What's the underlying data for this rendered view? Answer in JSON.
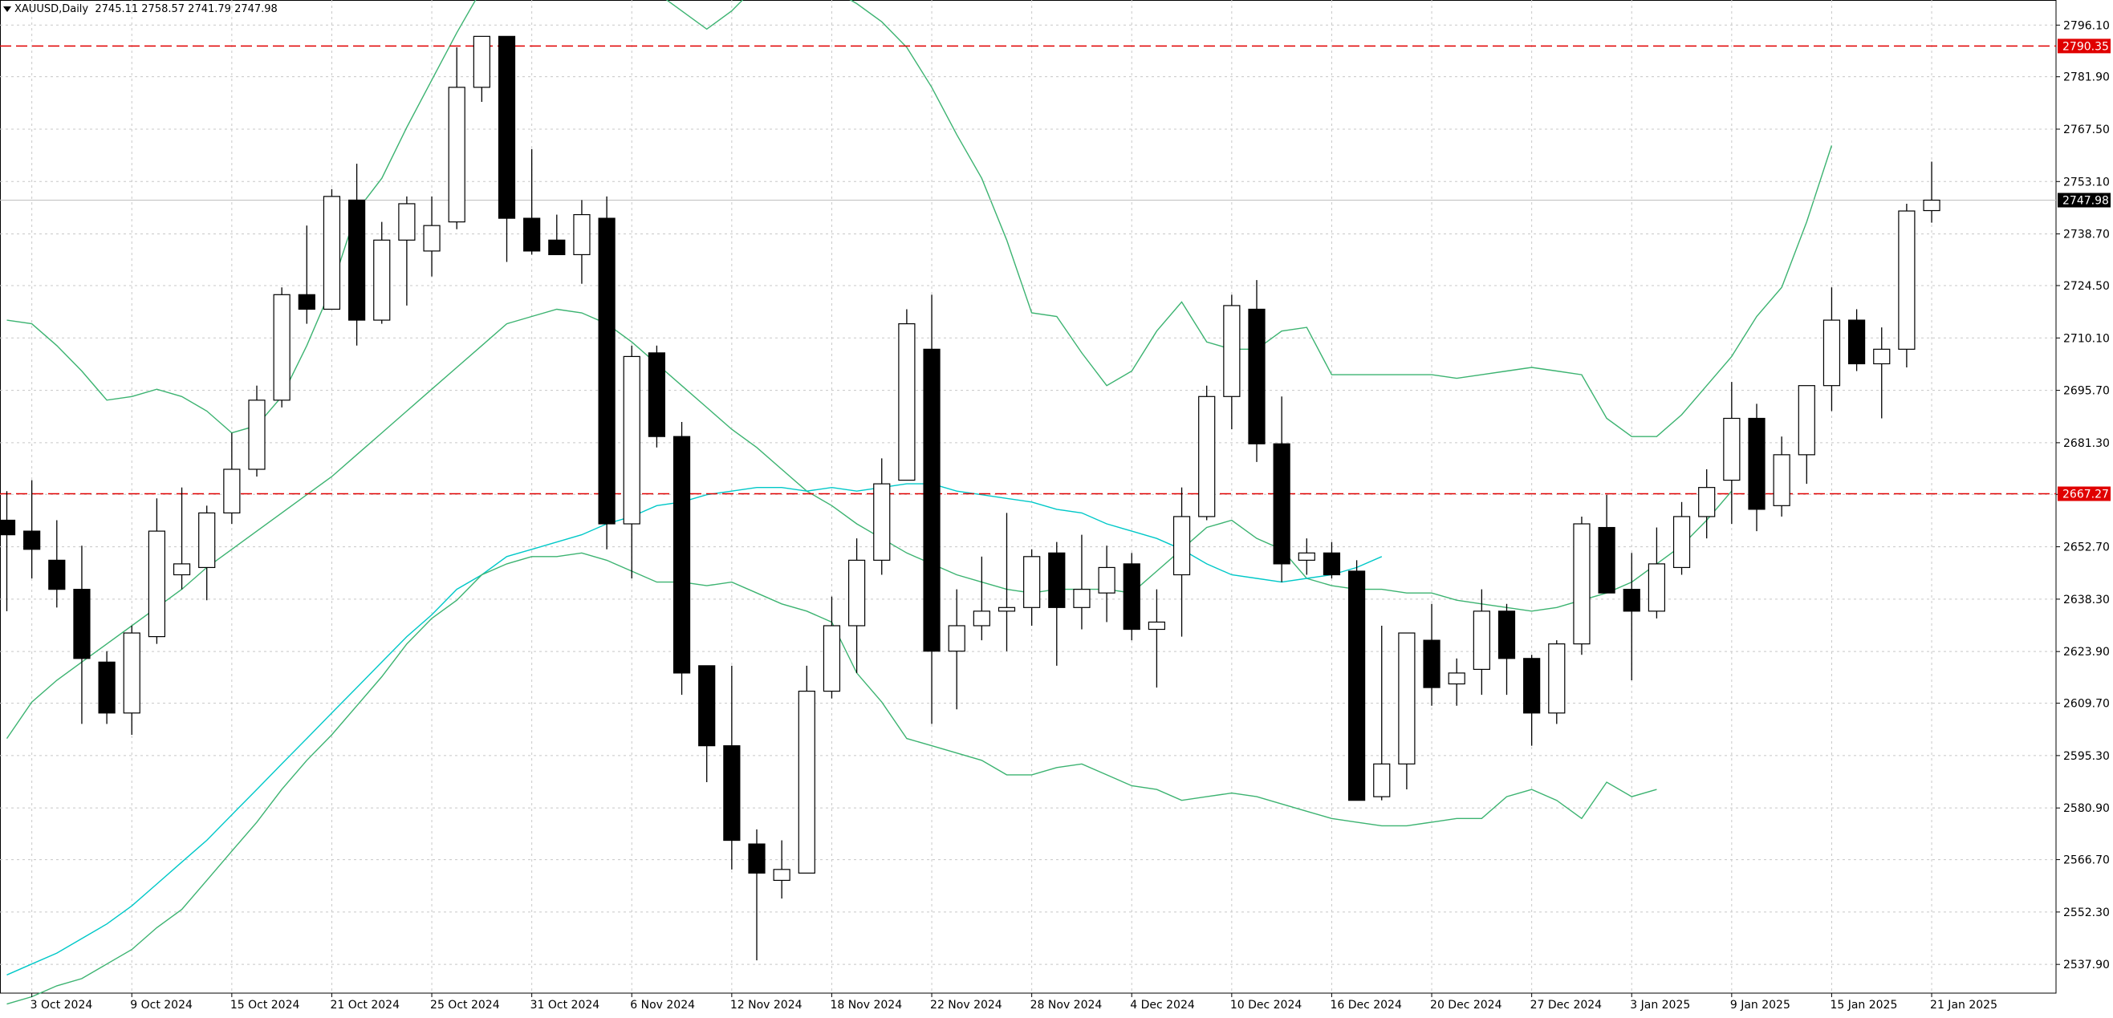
{
  "header": {
    "symbol": "XAUUSD,Daily",
    "ohlc": "2745.11 2758.57 2741.79 2747.98"
  },
  "colors": {
    "background": "#ffffff",
    "grid": "#c8c8c8",
    "candle": "#000000",
    "bollinger": "#3cb371",
    "moving_average": "#00c8c8",
    "level_line": "#e00000",
    "price_line": "#c0c0c0"
  },
  "chart_data": {
    "type": "candlestick",
    "ylim": [
      2530,
      2803
    ],
    "grid": true,
    "y_ticks": [
      2537.9,
      2552.3,
      2566.7,
      2580.9,
      2595.3,
      2609.7,
      2623.9,
      2638.3,
      2652.7,
      2667.1,
      2681.3,
      2695.7,
      2710.1,
      2724.5,
      2738.7,
      2753.1,
      2767.5,
      2781.9,
      2796.1
    ],
    "y_tick_labels": [
      "2537.90",
      "2552.30",
      "2566.70",
      "2580.90",
      "2595.30",
      "2609.70",
      "2623.90",
      "2638.30",
      "2652.70",
      "2667.10",
      "2681.30",
      "2695.70",
      "2710.10",
      "2724.50",
      "2738.70",
      "2753.10",
      "2767.50",
      "2781.90",
      "2796.10"
    ],
    "x_tick_labels": [
      {
        "index": 1,
        "label": "3 Oct 2024"
      },
      {
        "index": 5,
        "label": "9 Oct 2024"
      },
      {
        "index": 9,
        "label": "15 Oct 2024"
      },
      {
        "index": 13,
        "label": "21 Oct 2024"
      },
      {
        "index": 17,
        "label": "25 Oct 2024"
      },
      {
        "index": 21,
        "label": "31 Oct 2024"
      },
      {
        "index": 25,
        "label": "6 Nov 2024"
      },
      {
        "index": 29,
        "label": "12 Nov 2024"
      },
      {
        "index": 33,
        "label": "18 Nov 2024"
      },
      {
        "index": 37,
        "label": "22 Nov 2024"
      },
      {
        "index": 41,
        "label": "28 Nov 2024"
      },
      {
        "index": 45,
        "label": "4 Dec 2024"
      },
      {
        "index": 49,
        "label": "10 Dec 2024"
      },
      {
        "index": 53,
        "label": "16 Dec 2024"
      },
      {
        "index": 57,
        "label": "20 Dec 2024"
      },
      {
        "index": 61,
        "label": "27 Dec 2024"
      },
      {
        "index": 65,
        "label": "3 Jan 2025"
      },
      {
        "index": 69,
        "label": "9 Jan 2025"
      },
      {
        "index": 73,
        "label": "15 Jan 2025"
      },
      {
        "index": 77,
        "label": "21 Jan 2025"
      }
    ],
    "levels": [
      {
        "value": 2790.35,
        "label": "2790.35"
      },
      {
        "value": 2667.27,
        "label": "2667.27"
      }
    ],
    "current_price": {
      "value": 2747.98,
      "label": "2747.98"
    },
    "candles": [
      [
        2660,
        2668,
        2635,
        2656
      ],
      [
        2657,
        2671,
        2644,
        2652
      ],
      [
        2649,
        2660,
        2636,
        2641
      ],
      [
        2641,
        2653,
        2604,
        2622
      ],
      [
        2621,
        2624,
        2604,
        2607
      ],
      [
        2607,
        2631,
        2601,
        2629
      ],
      [
        2628,
        2666,
        2626,
        2657
      ],
      [
        2645,
        2669,
        2641,
        2648
      ],
      [
        2647,
        2664,
        2638,
        2662
      ],
      [
        2662,
        2684,
        2659,
        2674
      ],
      [
        2674,
        2697,
        2672,
        2693
      ],
      [
        2693,
        2724,
        2691,
        2722
      ],
      [
        2722,
        2741,
        2714,
        2718
      ],
      [
        2718,
        2751,
        2718,
        2749
      ],
      [
        2748,
        2758,
        2708,
        2715
      ],
      [
        2715,
        2742,
        2714,
        2737
      ],
      [
        2737,
        2749,
        2719,
        2747
      ],
      [
        2734,
        2749,
        2727,
        2741
      ],
      [
        2742,
        2790,
        2740,
        2779
      ],
      [
        2779,
        2792,
        2775,
        2793
      ],
      [
        2793,
        2793,
        2731,
        2743
      ],
      [
        2743,
        2762,
        2733,
        2734
      ],
      [
        2737,
        2744,
        2733,
        2733
      ],
      [
        2733,
        2748,
        2725,
        2744
      ],
      [
        2743,
        2749,
        2652,
        2659
      ],
      [
        2659,
        2708,
        2644,
        2705
      ],
      [
        2706,
        2708,
        2680,
        2683
      ],
      [
        2683,
        2687,
        2612,
        2618
      ],
      [
        2620,
        2620,
        2588,
        2598
      ],
      [
        2598,
        2620,
        2564,
        2572
      ],
      [
        2571,
        2575,
        2539,
        2563
      ],
      [
        2561,
        2572,
        2556,
        2564
      ],
      [
        2563,
        2620,
        2563,
        2613
      ],
      [
        2613,
        2639,
        2611,
        2631
      ],
      [
        2631,
        2655,
        2618,
        2649
      ],
      [
        2649,
        2677,
        2645,
        2670
      ],
      [
        2671,
        2718,
        2671,
        2714
      ],
      [
        2707,
        2722,
        2604,
        2624
      ],
      [
        2624,
        2641,
        2608,
        2631
      ],
      [
        2631,
        2650,
        2627,
        2635
      ],
      [
        2635,
        2662,
        2624,
        2636
      ],
      [
        2636,
        2652,
        2631,
        2650
      ],
      [
        2651,
        2654,
        2620,
        2636
      ],
      [
        2636,
        2656,
        2630,
        2641
      ],
      [
        2640,
        2653,
        2632,
        2647
      ],
      [
        2648,
        2651,
        2627,
        2630
      ],
      [
        2630,
        2641,
        2614,
        2632
      ],
      [
        2645,
        2669,
        2628,
        2661
      ],
      [
        2661,
        2697,
        2660,
        2694
      ],
      [
        2694,
        2722,
        2685,
        2719
      ],
      [
        2718,
        2726,
        2676,
        2681
      ],
      [
        2681,
        2694,
        2643,
        2648
      ],
      [
        2649,
        2655,
        2645,
        2651
      ],
      [
        2651,
        2654,
        2644,
        2645
      ],
      [
        2646,
        2649,
        2583,
        2583
      ],
      [
        2584,
        2631,
        2583,
        2593
      ],
      [
        2593,
        2628,
        2586,
        2629
      ],
      [
        2627,
        2637,
        2609,
        2614
      ],
      [
        2615,
        2622,
        2609,
        2618
      ],
      [
        2619,
        2641,
        2612,
        2635
      ],
      [
        2635,
        2637,
        2612,
        2622
      ],
      [
        2622,
        2623,
        2598,
        2607
      ],
      [
        2607,
        2627,
        2604,
        2626
      ],
      [
        2626,
        2661,
        2623,
        2659
      ],
      [
        2658,
        2667,
        2640,
        2640
      ],
      [
        2641,
        2651,
        2616,
        2635
      ],
      [
        2635,
        2658,
        2633,
        2648
      ],
      [
        2647,
        2665,
        2645,
        2661
      ],
      [
        2661,
        2674,
        2655,
        2669
      ],
      [
        2671,
        2698,
        2659,
        2688
      ],
      [
        2688,
        2692,
        2657,
        2663
      ],
      [
        2664,
        2683,
        2661,
        2678
      ],
      [
        2678,
        2697,
        2670,
        2697
      ],
      [
        2697,
        2724,
        2690,
        2715
      ],
      [
        2715,
        2718,
        2701,
        2703
      ],
      [
        2703,
        2713,
        2688,
        2707
      ],
      [
        2707,
        2747,
        2702,
        2745
      ],
      [
        2745.11,
        2758.57,
        2741.79,
        2747.98
      ]
    ],
    "bollinger_upper": [
      2715,
      2714,
      2708,
      2701,
      2693,
      2694,
      2696,
      2694,
      2690,
      2684,
      2686,
      2694,
      2708,
      2724,
      2745,
      2754,
      2768,
      2781,
      2794,
      2806,
      2815,
      2820,
      2818,
      2815,
      2812,
      2807,
      2805,
      2800,
      2795,
      2800,
      2807,
      2808,
      2810,
      2806,
      2802,
      2797,
      2790,
      2779,
      2766,
      2754,
      2737,
      2717,
      2716,
      2706,
      2697,
      2701,
      2712,
      2720,
      2709,
      2707,
      2707,
      2712,
      2713,
      2700,
      2700,
      2700,
      2700,
      2700,
      2699,
      2700,
      2701,
      2702,
      2701,
      2700,
      2688,
      2683,
      2683,
      2689,
      2697,
      2705,
      2716,
      2724,
      2742,
      2763
    ],
    "bollinger_middle": [
      2600,
      2610,
      2616,
      2621,
      2626,
      2631,
      2636,
      2641,
      2647,
      2652,
      2657,
      2662,
      2667,
      2672,
      2678,
      2684,
      2690,
      2696,
      2702,
      2708,
      2714,
      2716,
      2718,
      2717,
      2714,
      2709,
      2703,
      2697,
      2691,
      2685,
      2680,
      2674,
      2668,
      2664,
      2659,
      2655,
      2651,
      2648,
      2645,
      2643,
      2641,
      2640,
      2641,
      2641,
      2641,
      2640,
      2646,
      2652,
      2658,
      2660,
      2655,
      2652,
      2644,
      2642,
      2641,
      2641,
      2640,
      2640,
      2638,
      2637,
      2636,
      2635,
      2636,
      2638,
      2640,
      2643,
      2648,
      2653,
      2660,
      2668
    ],
    "moving_average": [
      2535,
      2538,
      2541,
      2545,
      2549,
      2554,
      2560,
      2566,
      2572,
      2579,
      2586,
      2593,
      2600,
      2607,
      2614,
      2621,
      2628,
      2634,
      2641,
      2645,
      2650,
      2652,
      2654,
      2656,
      2659,
      2661,
      2664,
      2665,
      2667,
      2668,
      2669,
      2669,
      2668,
      2669,
      2668,
      2669,
      2670,
      2670,
      2668,
      2667,
      2666,
      2665,
      2663,
      2662,
      2659,
      2657,
      2655,
      2652,
      2648,
      2645,
      2644,
      2643,
      2644,
      2645,
      2647,
      2650
    ],
    "bollinger_lower": [
      2527,
      2529,
      2532,
      2534,
      2538,
      2542,
      2548,
      2553,
      2561,
      2569,
      2577,
      2586,
      2594,
      2601,
      2609,
      2617,
      2626,
      2633,
      2638,
      2645,
      2648,
      2650,
      2650,
      2651,
      2649,
      2646,
      2643,
      2643,
      2642,
      2643,
      2640,
      2637,
      2635,
      2632,
      2618,
      2610,
      2600,
      2598,
      2596,
      2594,
      2590,
      2590,
      2592,
      2593,
      2590,
      2587,
      2586,
      2583,
      2584,
      2585,
      2584,
      2582,
      2580,
      2578,
      2577,
      2576,
      2576,
      2577,
      2578,
      2578,
      2584,
      2586,
      2583,
      2578,
      2588,
      2584,
      2586
    ]
  }
}
